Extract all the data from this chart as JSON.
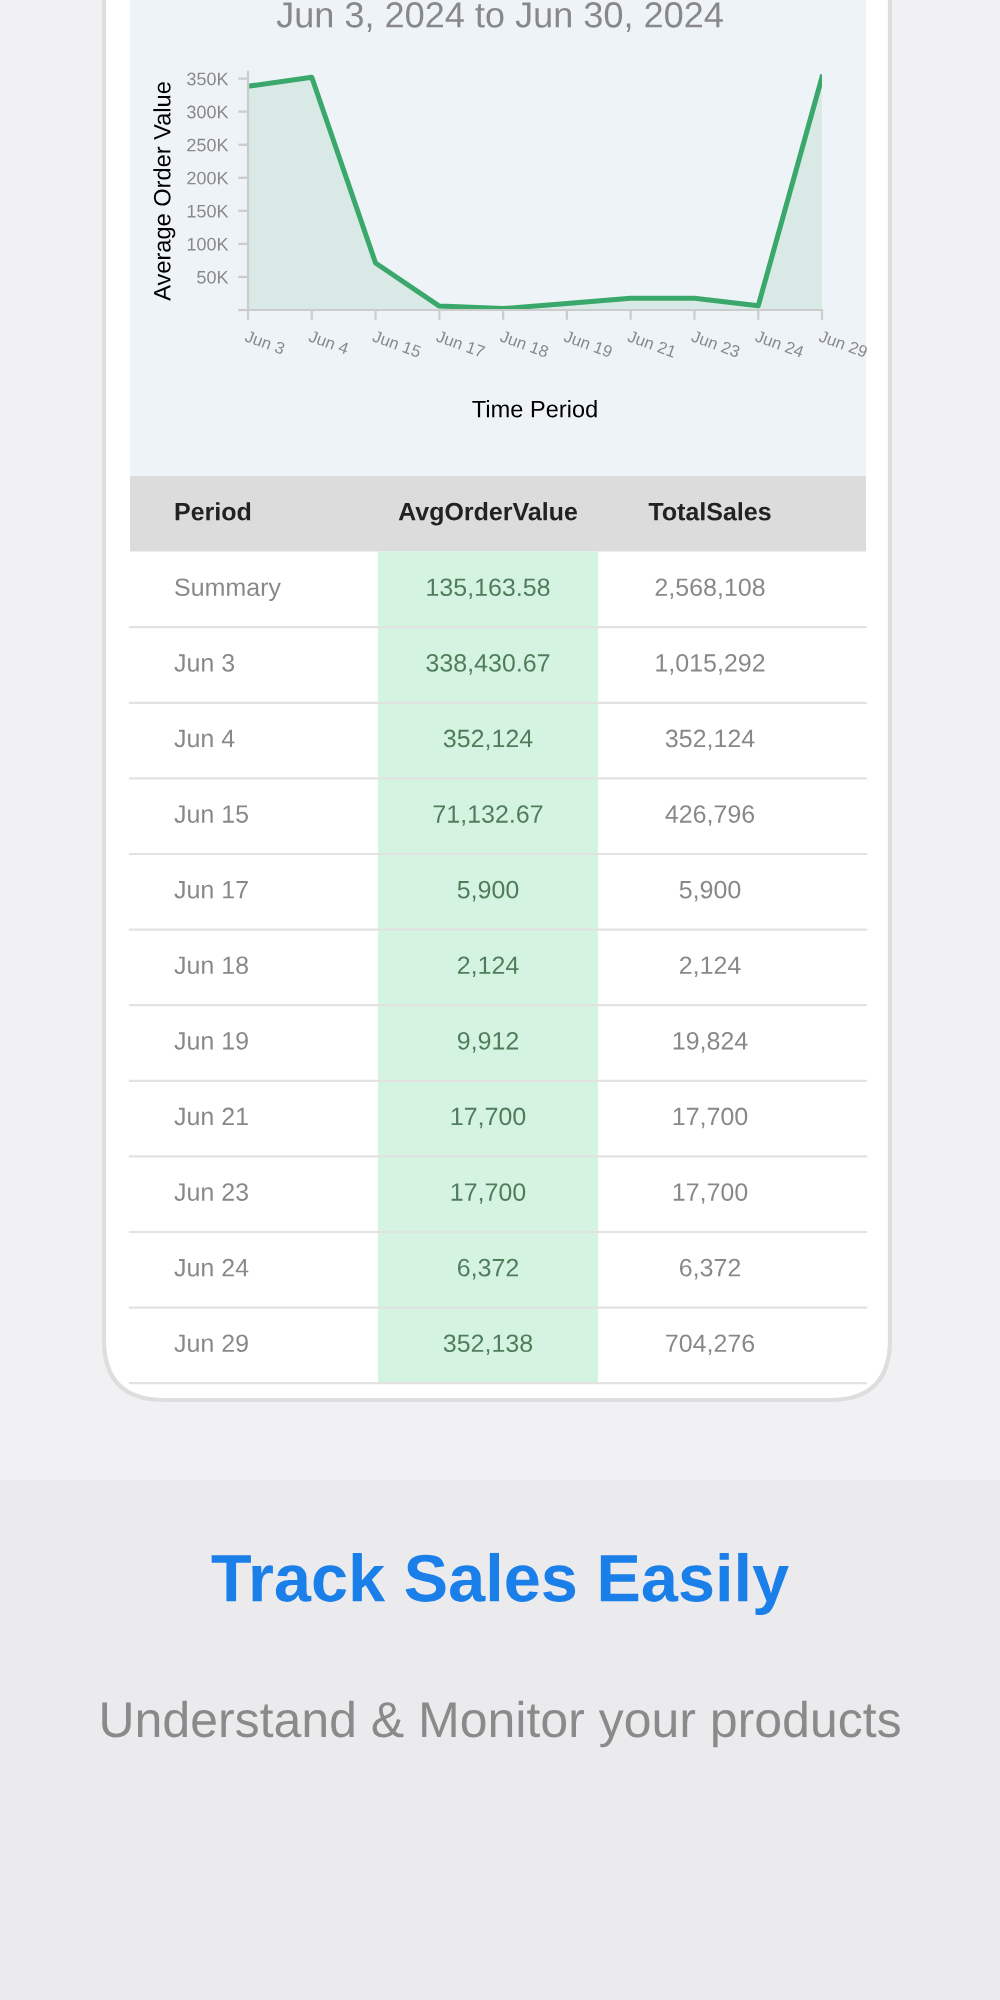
{
  "chart_data": {
    "type": "area",
    "title": "Jun 3, 2024 to Jun 30, 2024",
    "xlabel": "Time Period",
    "ylabel": "Average Order Value",
    "categories": [
      "Jun 3",
      "Jun 4",
      "Jun 15",
      "Jun 17",
      "Jun 18",
      "Jun 19",
      "Jun 21",
      "Jun 23",
      "Jun 24",
      "Jun 29"
    ],
    "series": [
      {
        "color": "#3aa86b",
        "values": [
          338430.67,
          352124,
          71132.67,
          5900,
          2124,
          9912,
          17700,
          17700,
          6372,
          352138
        ]
      }
    ],
    "ylim": [
      0,
      360000
    ],
    "yticks": [
      {
        "value": 0,
        "label": null
      },
      {
        "value": 50000,
        "label": "50K"
      },
      {
        "value": 100000,
        "label": "100K"
      },
      {
        "value": 150000,
        "label": "150K"
      },
      {
        "value": 200000,
        "label": "200K"
      },
      {
        "value": 250000,
        "label": "250K"
      },
      {
        "value": 300000,
        "label": "300K"
      },
      {
        "value": 350000,
        "label": "350K"
      }
    ],
    "grid": false,
    "marker": "none",
    "line_style": "solid",
    "annotations": [
      "Period",
      "AvgOrderValue",
      "TotalSales",
      "Summary",
      "135,163.58",
      "2,568,108",
      "338,430.67",
      "352,124",
      "71,132.67",
      "5,900",
      "2,124",
      "9,912",
      "17,700",
      "17,700",
      "6,372",
      "352,138",
      "1,015,292",
      "352,124",
      "426,796",
      "5,900",
      "2,124",
      "19,824",
      "17,700",
      "17,700",
      "6,372",
      "704,276",
      "Track Sales Easily",
      "Understand & Monitor your products"
    ]
  }
}
